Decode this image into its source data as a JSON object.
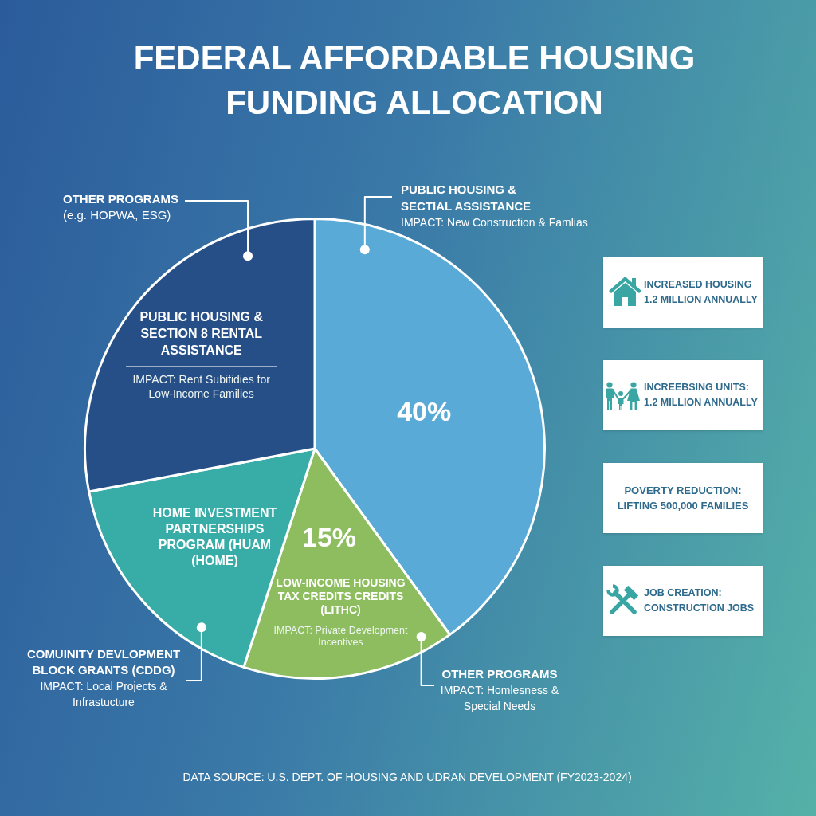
{
  "chart_data": {
    "type": "pie",
    "title": "FEDERAL AFFORDABLE HOUSING FUNDING ALLOCATION",
    "categories": [
      "PUBLIC HOUSING & SECTIAL ASSISTANCE",
      "LOW-INCOME HOUSING TAX CREDITS CREDITS (LITHC)",
      "HOME INVESTMENT PARTNERSHIPS PROGRAM (HUAM (HOME)",
      "PUBLIC HOUSING & SECTION 8 RENTAL ASSISTANCE"
    ],
    "values": [
      40,
      15,
      17,
      28
    ],
    "colors": [
      "#5aaad8",
      "#8dbd5f",
      "#38aca6",
      "#264f88"
    ],
    "value_labels": [
      "40%",
      "15%",
      null,
      null
    ],
    "annotations": [
      "OTHER PROGRAMS",
      "(e.g. HOPWA, ESG)",
      "IMPACT: New Construction & Famlias",
      "IMPACT: Rent Subifidies for Low-Income Families",
      "IMPACT: Private Development Incentives",
      "COMUINITY DEVLOPMENT BLOCK GRANTS (CDDG)",
      "IMPACT: Local Projects & Infrastucture",
      "OTHER PROGRAMS",
      "IMPACT: Homlesness & Special Needs",
      "INCREASED HOUSING 1.2 MILLION ANNUALLY",
      "INCREEBSING UNITS: 1.2 MILLION ANNUALLY",
      "POVERTY REDUCTION: LIFTING 500,000 FAMILIES",
      "JOB CREATION: CONSTRUCTION JOBS",
      "DATA SOURCE: U.S. DEPT. OF HOUSING AND UDRAN DEVELOPMENT (FY2023-2024)"
    ]
  }
}
